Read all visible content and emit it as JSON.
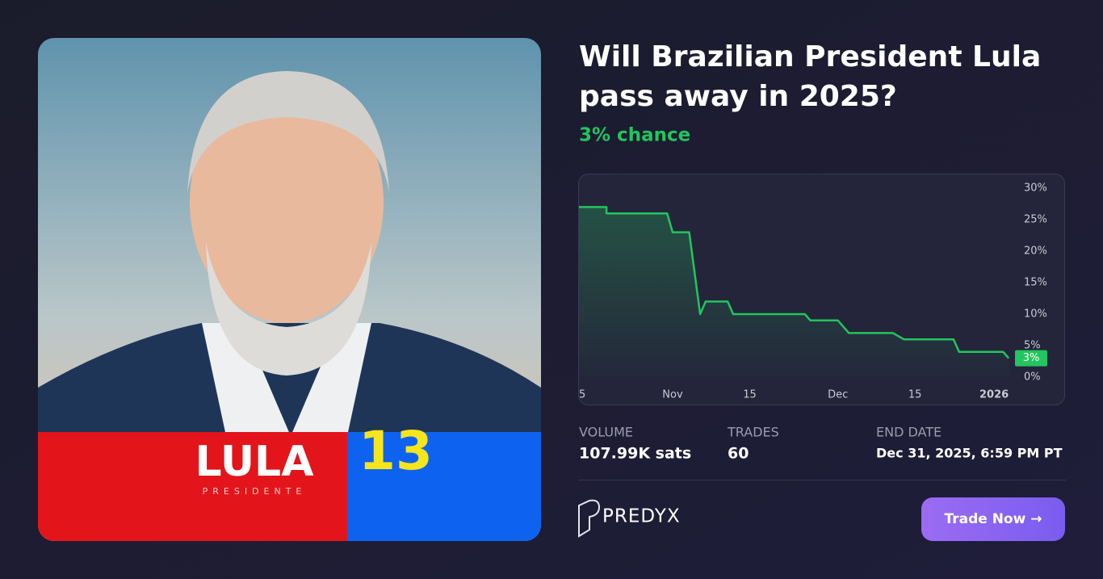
{
  "title_line1": "Will Brazilian President Lula",
  "title_line2": "pass away in 2025?",
  "chance": "3% chance",
  "image": {
    "name": "LULA",
    "subtitle": "PRESIDENTE",
    "number": "13"
  },
  "chart_data": {
    "type": "line",
    "x": [
      288,
      293,
      293,
      304,
      305,
      308,
      310,
      311,
      315,
      316,
      329,
      330,
      335,
      337,
      345,
      347,
      356,
      357,
      365,
      366
    ],
    "values": [
      27,
      27,
      26,
      26,
      23,
      23,
      10,
      12,
      12,
      10,
      10,
      9,
      9,
      7,
      7,
      6,
      6,
      4,
      4,
      3
    ],
    "value_labels": [
      null,
      null,
      null,
      null,
      null,
      null,
      null,
      null,
      null,
      null,
      null,
      null,
      null,
      null,
      null,
      null,
      null,
      null,
      null,
      "3%"
    ],
    "color": "#22c55e",
    "xlim": [
      288,
      367
    ],
    "xticks": [
      {
        "value": 288,
        "label": "5"
      },
      {
        "value": 305,
        "label": "Nov"
      },
      {
        "value": 319,
        "label": "15"
      },
      {
        "value": 335,
        "label": "Dec"
      },
      {
        "value": 349,
        "label": "15"
      },
      {
        "value": 366,
        "label": "2026"
      }
    ],
    "ylim": [
      0,
      30
    ],
    "yticks": [
      {
        "value": 0,
        "label": "0%"
      },
      {
        "value": 5,
        "label": "5%"
      },
      {
        "value": 10,
        "label": "10%"
      },
      {
        "value": 15,
        "label": "15%"
      },
      {
        "value": 20,
        "label": "20%"
      },
      {
        "value": 25,
        "label": "25%"
      },
      {
        "value": 30,
        "label": "30%"
      }
    ],
    "grid": false
  },
  "stats": [
    {
      "label": "VOLUME",
      "value": "107.99K sats"
    },
    {
      "label": "TRADES",
      "value": "60"
    },
    {
      "label": "END DATE",
      "value": "Dec 31, 2025, 6:59 PM PT"
    }
  ],
  "logo": "PREDYX",
  "button": "Trade Now →"
}
